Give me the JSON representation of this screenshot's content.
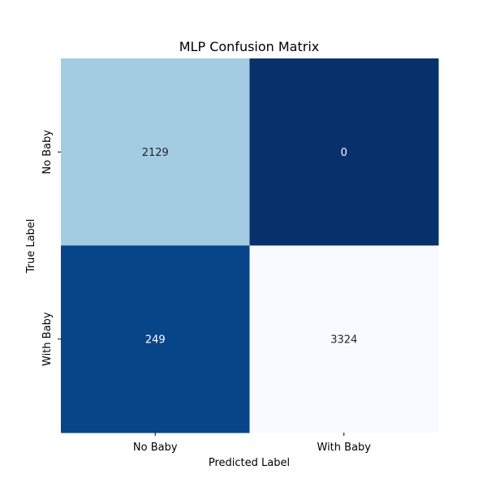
{
  "chart_data": {
    "type": "heatmap",
    "title": "MLP Confusion Matrix",
    "xlabel": "Predicted Label",
    "ylabel": "True Label",
    "x_categories": [
      "No Baby",
      "With Baby"
    ],
    "y_categories": [
      "No Baby",
      "With Baby"
    ],
    "matrix": [
      [
        2129,
        0
      ],
      [
        249,
        3324
      ]
    ],
    "cell_labels": [
      [
        "2129",
        "0"
      ],
      [
        "249",
        "3324"
      ]
    ],
    "colormap": "Blues",
    "value_range": [
      0,
      3324
    ],
    "colorbar": false,
    "grid": false
  }
}
